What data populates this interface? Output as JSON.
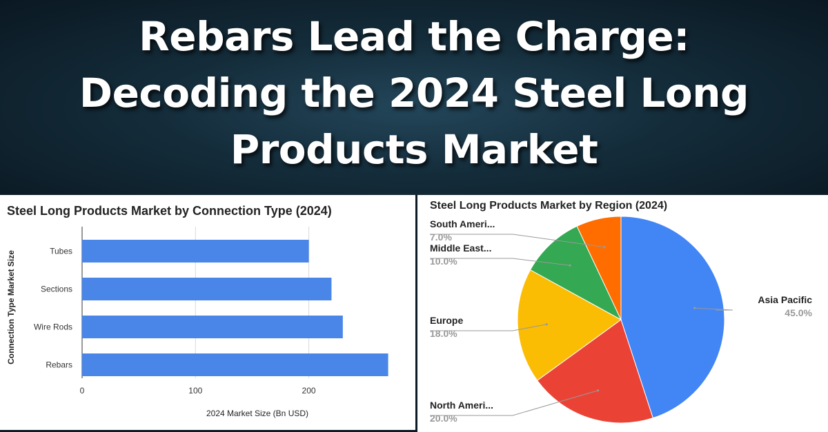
{
  "headline": {
    "line1": "Rebars Lead the Charge:",
    "line2": "Decoding the 2024 Steel Long",
    "line3": "Products Market"
  },
  "chart_data": [
    {
      "type": "bar",
      "orientation": "horizontal",
      "title": "Steel Long Products Market by Connection Type (2024)",
      "xlabel": "2024 Market Size (Bn USD)",
      "ylabel": "Connection Type Market Size",
      "categories": [
        "Tubes",
        "Sections",
        "Wire Rods",
        "Rebars"
      ],
      "values": [
        200,
        220,
        230,
        270
      ],
      "xlim": [
        0,
        280
      ],
      "xticks": [
        0,
        100,
        200
      ],
      "grid": true,
      "color": "#4a86e8"
    },
    {
      "type": "pie",
      "title": "Steel Long Products Market by Region (2024)",
      "slices": [
        {
          "label": "Asia Pacific",
          "value": 45.0,
          "pct_label": "45.0%",
          "color": "#4285f4"
        },
        {
          "label": "North Ameri...",
          "value": 20.0,
          "pct_label": "20.0%",
          "color": "#ea4335"
        },
        {
          "label": "Europe",
          "value": 18.0,
          "pct_label": "18.0%",
          "color": "#fbbc04"
        },
        {
          "label": "Middle East...",
          "value": 10.0,
          "pct_label": "10.0%",
          "color": "#34a853"
        },
        {
          "label": "South Ameri...",
          "value": 7.0,
          "pct_label": "7.0%",
          "color": "#ff6d01"
        }
      ]
    }
  ]
}
